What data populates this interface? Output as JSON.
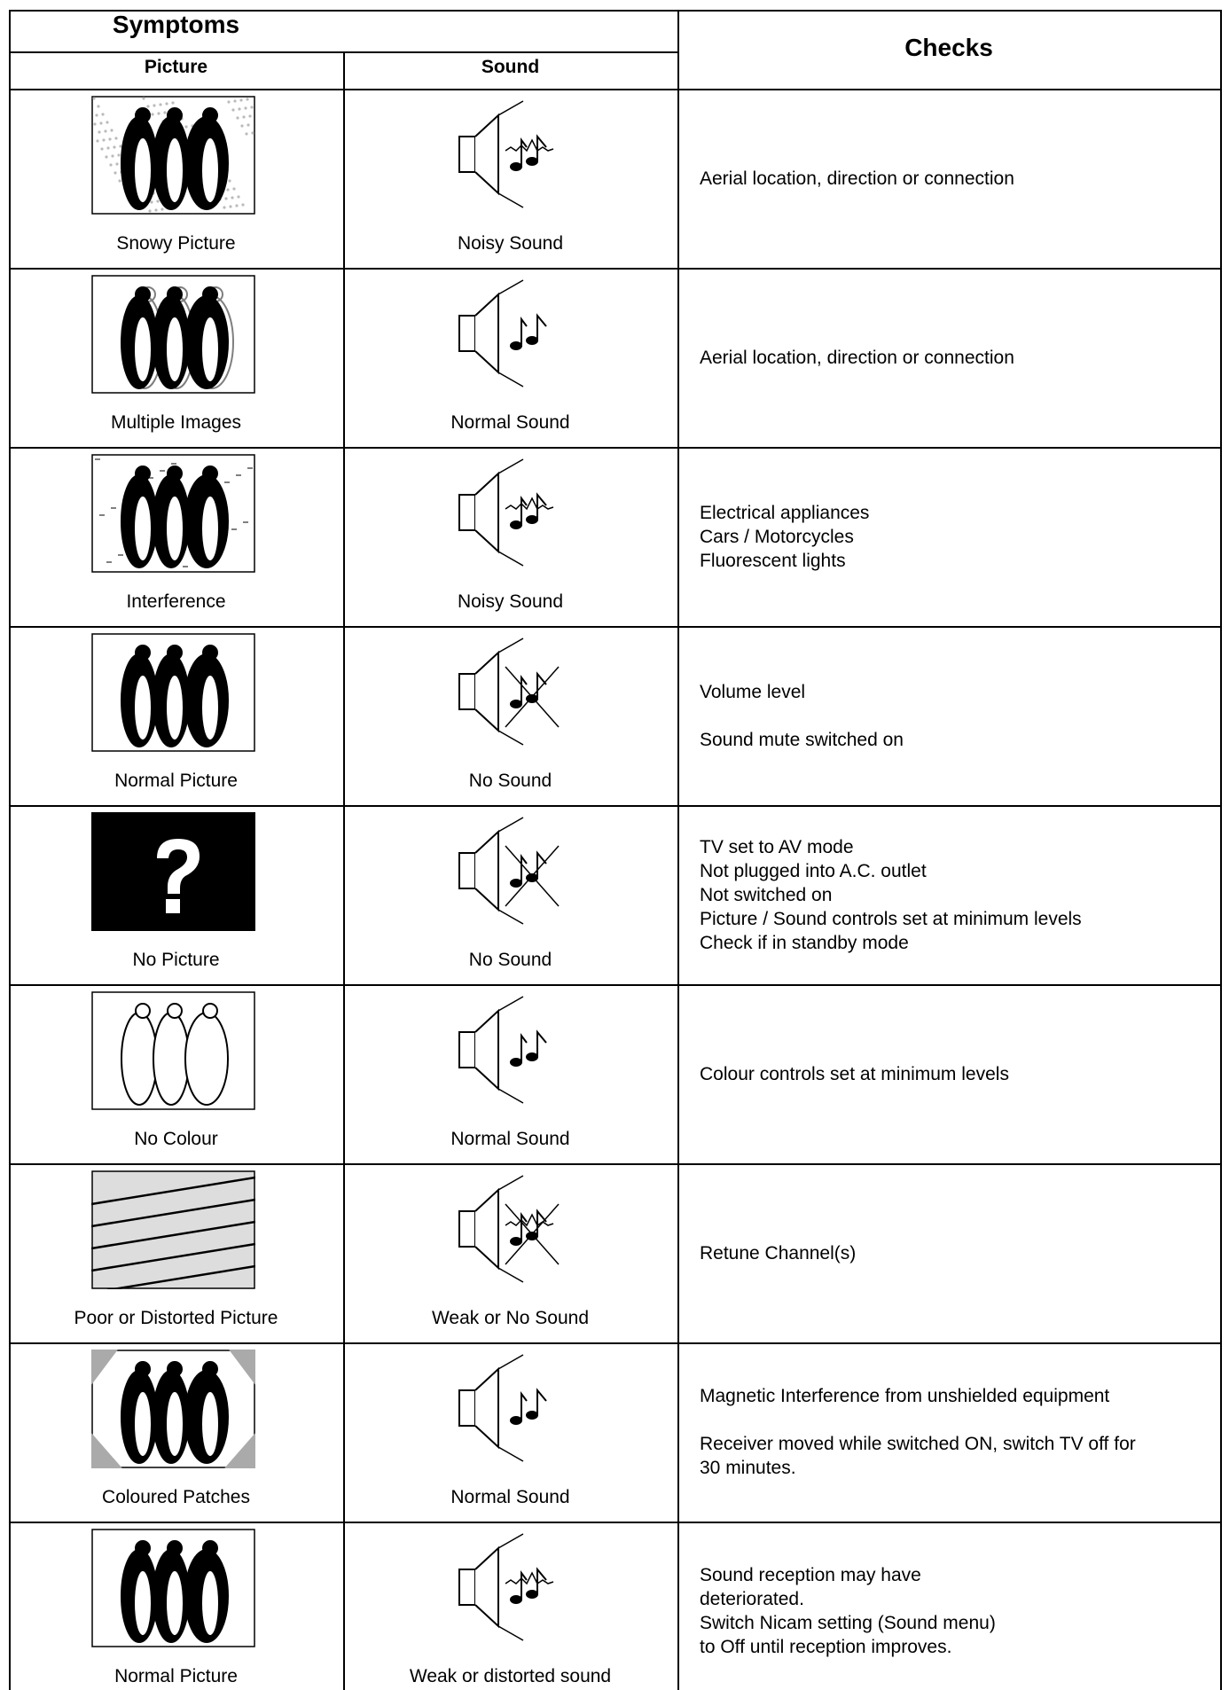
{
  "header": {
    "symptoms": "Symptoms",
    "picture": "Picture",
    "sound": "Sound",
    "checks": "Checks"
  },
  "rows": [
    {
      "picture": "Snowy Picture",
      "sound": "Noisy Sound",
      "checks": [
        [
          "Aerial location, direction or connection"
        ]
      ]
    },
    {
      "picture": "Multiple Images",
      "sound": "Normal Sound",
      "checks": [
        [
          "Aerial location, direction or connection"
        ]
      ]
    },
    {
      "picture": "Interference",
      "sound": "Noisy Sound",
      "checks": [
        [
          "Electrical appliances",
          "Cars / Motorcycles",
          "Fluorescent lights"
        ]
      ]
    },
    {
      "picture": "Normal Picture",
      "sound": "No Sound",
      "checks": [
        [
          "Volume level"
        ],
        [
          "Sound mute switched on"
        ]
      ]
    },
    {
      "picture": "No Picture",
      "sound": "No Sound",
      "checks": [
        [
          "TV set to AV mode",
          "Not plugged into A.C. outlet",
          "Not switched on",
          "Picture / Sound controls set at minimum levels",
          "Check if in standby mode"
        ]
      ]
    },
    {
      "picture": "No Colour",
      "sound": "Normal Sound",
      "checks": [
        [
          "Colour controls set at minimum levels"
        ]
      ]
    },
    {
      "picture": "Poor or Distorted Picture",
      "sound": "Weak or No Sound",
      "checks": [
        [
          "Retune Channel(s)"
        ]
      ]
    },
    {
      "picture": "Coloured Patches",
      "sound": "Normal Sound",
      "checks": [
        [
          "Magnetic Interference from unshielded equipment"
        ],
        [
          "Receiver moved while switched ON, switch TV off for",
          "30 minutes."
        ]
      ]
    },
    {
      "picture": "Normal Picture",
      "sound": "Weak or distorted sound",
      "checks": [
        [
          "Sound reception may have",
          "deteriorated.",
          "Switch Nicam setting (Sound menu)",
          "to Off until reception improves."
        ]
      ]
    }
  ]
}
